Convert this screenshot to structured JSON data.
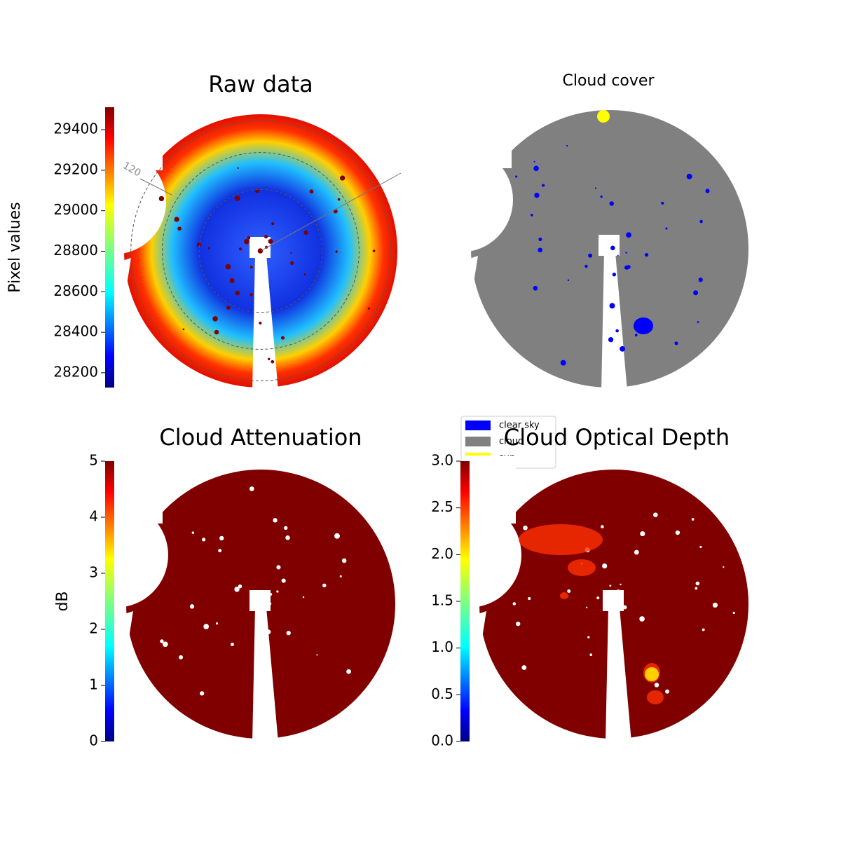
{
  "chart_data": [
    {
      "type": "image",
      "title": "Raw data",
      "colorbar_label": "Pixel values",
      "colormap": "jet",
      "ylim": [
        28127,
        29511
      ],
      "yticks": [
        28200,
        28400,
        28600,
        28800,
        29000,
        29200,
        29400
      ],
      "annotations": [
        "120"
      ]
    },
    {
      "type": "image",
      "title": "Cloud cover",
      "legend": "center",
      "series": [
        {
          "name": "clear sky",
          "color": "#0000ff"
        },
        {
          "name": "cloud",
          "color": "#808080"
        },
        {
          "name": "sun",
          "color": "#ffff00"
        }
      ]
    },
    {
      "type": "image",
      "title": "Cloud Attenuation",
      "colorbar_label": "dB",
      "colormap": "jet",
      "ylim": [
        0,
        5
      ],
      "yticks": [
        0,
        1,
        2,
        3,
        4,
        5
      ]
    },
    {
      "type": "image",
      "title": "Cloud Optical Depth",
      "colormap": "jet",
      "ylim": [
        0,
        3
      ],
      "yticks": [
        {
          "value": 0,
          "label": "0.0"
        },
        {
          "value": 0.5,
          "label": "0.5"
        },
        {
          "value": 1,
          "label": "1.0"
        },
        {
          "value": 1.5,
          "label": "1.5"
        },
        {
          "value": 2,
          "label": "2.0"
        },
        {
          "value": 2.5,
          "label": "2.5"
        },
        {
          "value": 3,
          "label": "3.0"
        }
      ]
    }
  ]
}
